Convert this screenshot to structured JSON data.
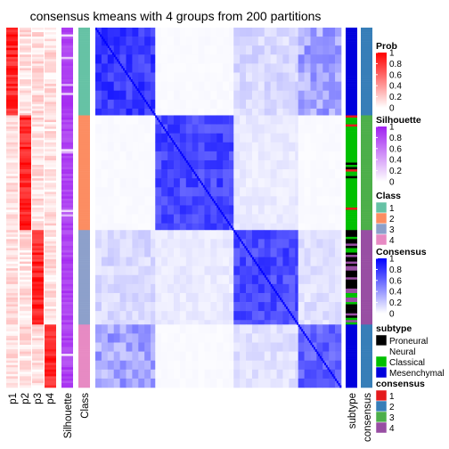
{
  "chart_data": {
    "type": "heatmap",
    "title": "consensus kmeans with 4 groups from 200 partitions",
    "n_samples": 160,
    "class_colors": {
      "1": "#66C2A5",
      "2": "#FC8D62",
      "3": "#8DA0CB",
      "4": "#E78AC3"
    },
    "sample_classes": {
      "1": 39,
      "2": 51,
      "3": 42,
      "4": 28
    },
    "left_annotations": [
      "p1",
      "p2",
      "p3",
      "p4",
      "Silhouette",
      "Class"
    ],
    "right_annotations": [
      "subtype",
      "consensus"
    ],
    "legends": [
      {
        "title": "Prob",
        "type": "continuous",
        "colors": [
          "#FFFFFF",
          "#FF0000"
        ],
        "ticks": [
          "1",
          "0.8",
          "0.6",
          "0.4",
          "0.2",
          "0"
        ]
      },
      {
        "title": "Silhouette",
        "type": "continuous",
        "colors": [
          "#FFFFFF",
          "#A020F0"
        ],
        "ticks": [
          "1",
          "0.8",
          "0.6",
          "0.4",
          "0.2",
          "0"
        ]
      },
      {
        "title": "Class",
        "type": "discrete",
        "items": [
          {
            "label": "1",
            "color": "#66C2A5"
          },
          {
            "label": "2",
            "color": "#FC8D62"
          },
          {
            "label": "3",
            "color": "#8DA0CB"
          },
          {
            "label": "4",
            "color": "#E78AC3"
          }
        ]
      },
      {
        "title": "Consensus",
        "type": "continuous",
        "colors": [
          "#FFFFFF",
          "#0000FF"
        ],
        "ticks": [
          "1",
          "0.8",
          "0.6",
          "0.4",
          "0.2",
          "0"
        ]
      },
      {
        "title": "subtype",
        "type": "discrete",
        "items": [
          {
            "label": "Proneural",
            "color": "#000000"
          },
          {
            "label": "Neural",
            "color": "#FFFFFF"
          },
          {
            "label": "Classical",
            "color": "#00C000"
          },
          {
            "label": "Mesenchymal",
            "color": "#0000DD"
          }
        ]
      },
      {
        "title": "consensus",
        "type": "discrete",
        "items": [
          {
            "label": "1",
            "color": "#E41A1C"
          },
          {
            "label": "2",
            "color": "#377EB8"
          },
          {
            "label": "3",
            "color": "#4DAF4A"
          },
          {
            "label": "4",
            "color": "#984EA3"
          }
        ]
      }
    ]
  }
}
